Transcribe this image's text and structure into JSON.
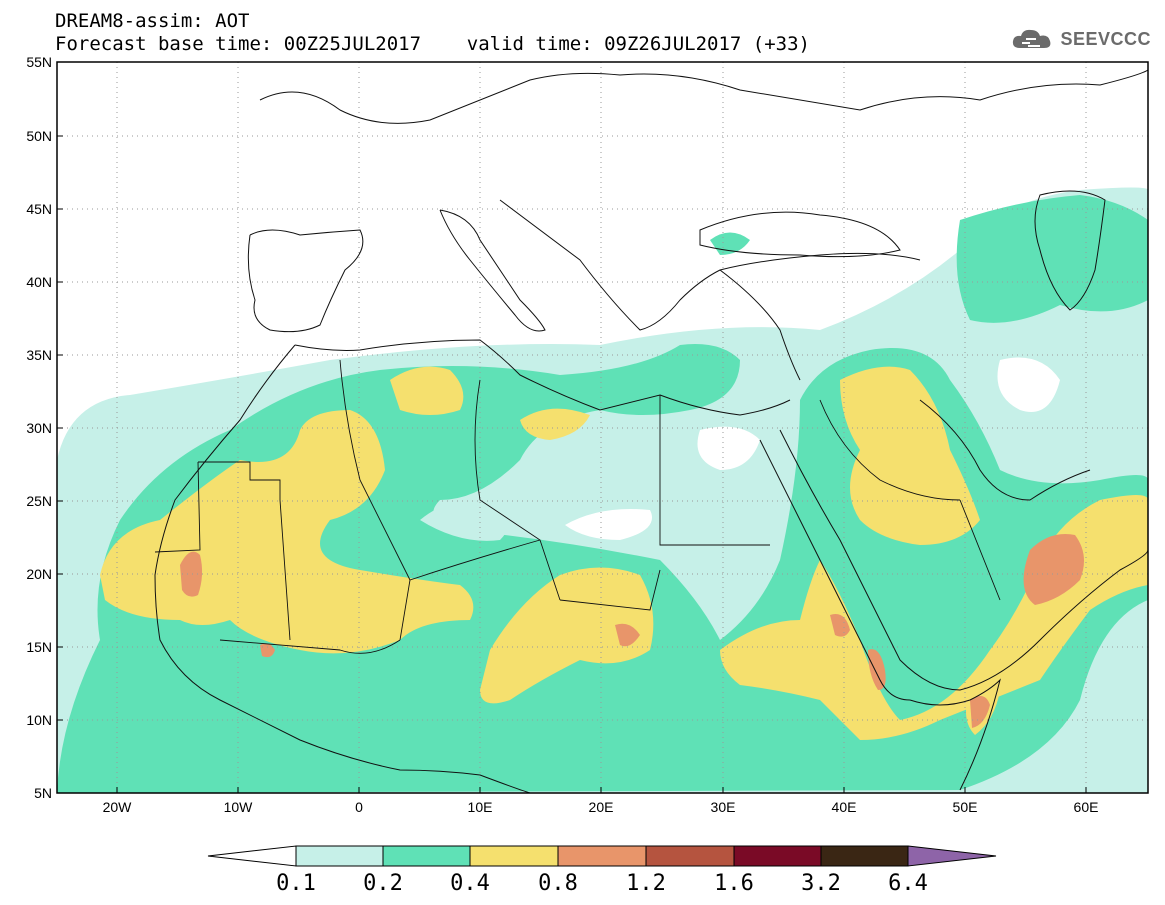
{
  "title": {
    "line1": "DREAM8-assim: AOT",
    "line2": "Forecast base time: 00Z25JUL2017    valid time: 09Z26JUL2017 (+33)"
  },
  "logo": {
    "text": "SEEVCCC",
    "icon": "cloud-icon"
  },
  "axes": {
    "lat_labels": [
      "55N",
      "50N",
      "45N",
      "40N",
      "35N",
      "30N",
      "25N",
      "20N",
      "15N",
      "10N",
      "5N"
    ],
    "lon_labels": [
      "20W",
      "10W",
      "0",
      "10E",
      "20E",
      "30E",
      "40E",
      "50E",
      "60E"
    ]
  },
  "colorbar": {
    "labels": [
      "0.1",
      "0.2",
      "0.4",
      "0.8",
      "1.2",
      "1.6",
      "3.2",
      "6.4"
    ],
    "colors": [
      "#ffffff",
      "#c6f0e8",
      "#5fe1b6",
      "#f5e06e",
      "#e8956a",
      "#b5543f",
      "#7a0a26",
      "#3a2614",
      "#8e64a8"
    ]
  },
  "colors": {
    "c01": "#c6f0e8",
    "c02": "#5fe1b6",
    "c04": "#f5e06e",
    "c08": "#e8956a",
    "c12": "#b5543f"
  }
}
